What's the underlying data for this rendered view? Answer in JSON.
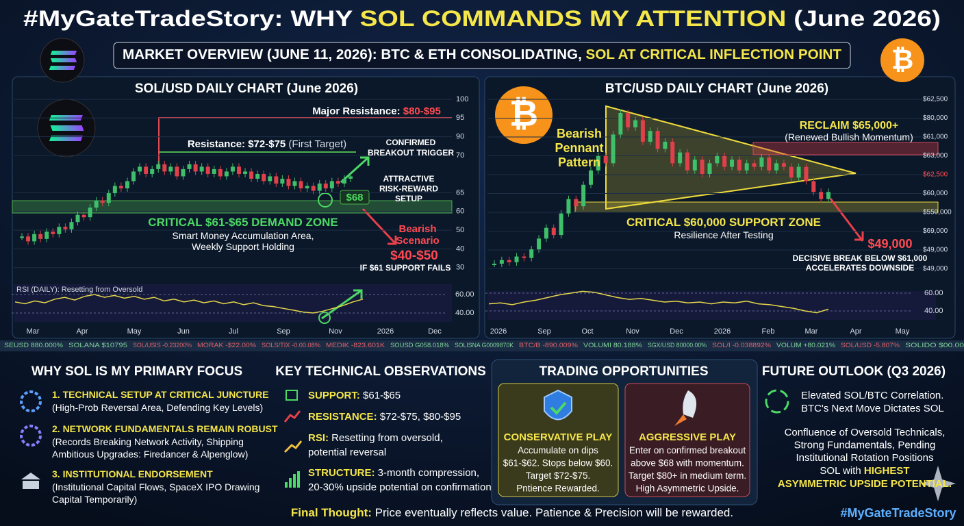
{
  "header": {
    "title_parts": [
      "#MyGateTradeStory: WHY ",
      "SOL COMMANDS MY ATTENTION",
      " (June 2026)"
    ],
    "subtitle_parts": [
      "MARKET OVERVIEW (JUNE 11, 2026): BTC & ETH CONSOLIDATING, ",
      "SOL AT CRITICAL INFLECTION POINT"
    ]
  },
  "sol_chart": {
    "type": "candlestick",
    "title": "SOL/USD DAILY CHART (June 2026)",
    "ylim": [
      30,
      100
    ],
    "y_labels": [
      100,
      95,
      90,
      70,
      65,
      60,
      50,
      40,
      30
    ],
    "x_labels": [
      "Mar",
      "Apr",
      "May",
      "Jun",
      "Jul",
      "Sep",
      "Nov",
      "2026",
      "Dec"
    ],
    "closes": [
      43,
      41,
      44,
      42,
      45,
      44,
      47,
      46,
      49,
      52,
      51,
      55,
      58,
      57,
      61,
      64,
      63,
      66,
      70,
      72,
      69,
      71,
      73,
      70,
      72,
      68,
      71,
      73,
      70,
      72,
      69,
      71,
      68,
      70,
      72,
      69,
      70,
      67,
      69,
      66,
      68,
      65,
      67,
      64,
      66,
      63,
      64,
      62,
      65,
      63,
      66,
      65,
      67,
      68
    ],
    "major_resistance": [
      "Major Resistance: ",
      "$80-$95"
    ],
    "resistance": [
      "Resistance: $72-$75",
      " (First Target)"
    ],
    "breakout": [
      "CONFIRMED",
      "BREAKOUT TRIGGER"
    ],
    "setup": [
      "ATTRACTIVE",
      "RISK-REWARD",
      "SETUP"
    ],
    "entry": "$68",
    "demand_zone": "CRITICAL $61-$65 DEMAND ZONE",
    "demand_notes": [
      "Smart Money Accumulation Area,",
      "Weekly Support Holding"
    ],
    "bearish": [
      "Bearish",
      "Scenario"
    ],
    "bearish_target": "$40-$50",
    "bearish_condition": "IF $61 SUPPORT FAILS",
    "rsi": {
      "label": "RSI (DAILY): Resetting from Oversold",
      "ylim": [
        40,
        60
      ],
      "yticks": [
        {
          "value": 60,
          "label": "60.00"
        },
        {
          "value": 40,
          "label": "40.00"
        }
      ],
      "values": [
        52,
        50,
        53,
        51,
        55,
        57,
        54,
        58,
        60,
        57,
        59,
        56,
        58,
        55,
        57,
        53,
        55,
        52,
        54,
        51,
        53,
        50,
        52,
        49,
        51,
        48,
        47,
        45,
        43,
        41,
        40,
        42,
        45,
        48,
        52,
        55
      ]
    }
  },
  "btc_chart": {
    "type": "candlestick",
    "title": "BTC/USD DAILY CHART (June 2026)",
    "logo_symbol": "₿",
    "ylim": [
      49000,
      70000
    ],
    "y_labels": [
      "$62,500",
      "$80,000",
      "$61,000",
      "$63,000",
      "$62,500",
      "$60,000",
      "$550,000",
      "$69,000",
      "$49,000",
      "$49,000"
    ],
    "x_labels": [
      "2026",
      "Sep",
      "Oct",
      "Nov",
      "Dec",
      "2026",
      "Feb",
      "Mar",
      "Apr",
      "May"
    ],
    "closes": [
      49000,
      49500,
      49200,
      50000,
      49800,
      51000,
      52500,
      54000,
      53000,
      56000,
      58000,
      57000,
      60000,
      62000,
      64000,
      63000,
      67000,
      70000,
      68000,
      69000,
      66000,
      67500,
      65000,
      66000,
      63000,
      64500,
      62000,
      63500,
      61500,
      63000,
      64000,
      62500,
      63500,
      62000,
      63000,
      62500,
      63800,
      62000,
      63000,
      62500,
      61000,
      62500,
      60500,
      59000,
      58000,
      59000
    ],
    "pennant": [
      "Bearish",
      "Pennant",
      "Pattern"
    ],
    "reclaim": "RECLAIM $65,000+",
    "reclaim_note": "(Renewed Bullish Momentum)",
    "support_zone": "CRITICAL $60,000 SUPPORT ZONE",
    "support_note": "Resilience After Testing",
    "target": "$49,000",
    "break_note": [
      "DECISIVE BREAK BELOW $61,000",
      "ACCELERATES DOWNSIDE"
    ],
    "rsi": {
      "ylim": [
        40,
        60
      ],
      "yticks": [
        {
          "value": 60,
          "label": "60.00"
        },
        {
          "value": 40,
          "label": "40.00"
        }
      ],
      "values": [
        48,
        49,
        47,
        50,
        52,
        55,
        58,
        60,
        62,
        61,
        58,
        55,
        53,
        54,
        52,
        50,
        51,
        49,
        50,
        48,
        50,
        49,
        51,
        48,
        47,
        45,
        43,
        40,
        38,
        42
      ]
    }
  },
  "ticker": [
    "SEUSD 880.000%",
    "SOLANA $10795",
    "SOL/USIS -0.23200%",
    "MORAK -$22.00%",
    "SOLS/TIX -0.00.08%",
    "MEDIK -823.601K",
    "SOUSD G058.018%",
    "SOLISNA G0009870K",
    "BTC/B -890.009%",
    "VOLUMI 80.188%",
    "SGX/USD 80000.00%",
    "SOL/I -0.038892%",
    "VOLUM +80.021%",
    "SOL/USD -5.807%",
    "SOLIDO $00.00"
  ],
  "focus": {
    "title": "WHY SOL IS MY PRIMARY FOCUS",
    "items": [
      {
        "title": "1. TECHNICAL SETUP AT CRITICAL JUNCTURE",
        "lines": [
          "(High-Prob Reversal Area, Defending Key Levels)"
        ]
      },
      {
        "title": "2. NETWORK FUNDAMENTALS REMAIN ROBUST",
        "lines": [
          "(Records Breaking Network Activity, Shipping",
          "Ambitious Upgrades: Firedancer & Alpenglow)"
        ]
      },
      {
        "title": "3. INSTITUTIONAL ENDORSEMENT",
        "lines": [
          "(Institutional Capital Flows, SpaceX IPO Drawing",
          "Capital Temporarily)"
        ]
      }
    ]
  },
  "observations": {
    "title": "KEY TECHNICAL OBSERVATIONS",
    "items": [
      {
        "label": "SUPPORT:",
        "lines": [
          " $61-$65"
        ]
      },
      {
        "label": "RESISTANCE:",
        "lines": [
          " $72-$75, $80-$95"
        ]
      },
      {
        "label": "RSI:",
        "lines": [
          " Resetting from oversold,",
          "potential reversal"
        ]
      },
      {
        "label": "STRUCTURE:",
        "lines": [
          " 3-month compression,",
          "20-30% upside potential on confirmation"
        ]
      }
    ]
  },
  "opportunities": {
    "title": "TRADING OPPORTUNITIES",
    "cards": [
      {
        "title": "CONSERVATIVE PLAY",
        "lines": [
          "Accumulate on dips",
          "$61-$62. Stops below $60.",
          "Target $72-$75.",
          "Pntience Rewarded."
        ]
      },
      {
        "title": "AGGRESSIVE PLAY",
        "lines": [
          "Enter on confirmed breakout",
          "above $68 with momentum.",
          "Target $80+ in medium term.",
          "High Asymmetric Upside."
        ]
      }
    ]
  },
  "outlook": {
    "title": "FUTURE OUTLOOK (Q3 2026)",
    "lines": [
      "Elevated SOL/BTC Correlation.",
      "BTC's Next Move Dictates SOL"
    ],
    "summary": [
      "Confluence of Oversold Technicals,",
      "Strong Fundamentals, Pending",
      "Institutional Rotation Positions"
    ],
    "highlight": [
      "SOL with ",
      "HIGHEST"
    ],
    "highlight_end": "ASYMMETRIC UPSIDE POTENTIAL."
  },
  "footer": {
    "parts": [
      "Final Thought:",
      " Price eventually reflects value. Patience & Precision will be rewarded."
    ],
    "hashtag": "#MyGateTradeStory"
  }
}
